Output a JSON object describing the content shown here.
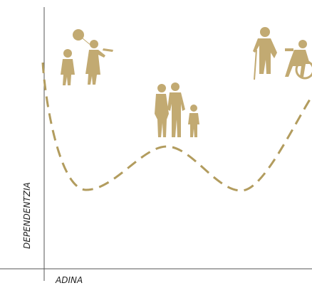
{
  "axes": {
    "y_label": "DEPENDENTZIA",
    "x_label": "ADINA"
  }
}
